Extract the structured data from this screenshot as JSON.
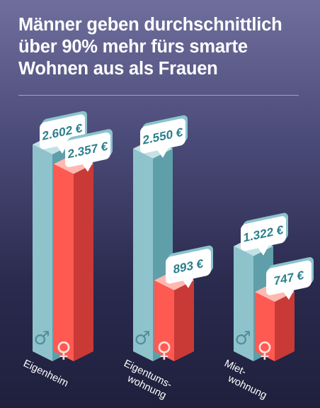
{
  "title_lines": [
    "Männer geben durchschnittlich",
    "über 90% mehr fürs smarte",
    "Wohnen aus als Frauen"
  ],
  "chart_data": {
    "type": "bar",
    "categories": [
      "Eigenheim",
      "Eigentums-\nwohnung",
      "Miet-\nwohnung"
    ],
    "series": [
      {
        "values": [
          2602,
          2550,
          1322
        ],
        "labels": [
          "2.602 €",
          "2.550 €",
          "1.322 €"
        ],
        "symbol": "♂"
      },
      {
        "values": [
          2357,
          893,
          747
        ],
        "labels": [
          "2.357 €",
          "893 €",
          "747 €"
        ],
        "symbol": "♀"
      }
    ],
    "ylim": [
      0,
      3200
    ],
    "colors": {
      "male_front": "#8fc3cc",
      "male_side": "#5f9faa",
      "male_top": "#c3e2e6",
      "female_front": "#ff5a52",
      "female_side": "#c93a36",
      "female_top": "#ffb8b0",
      "bubble_text": "#2b7f8c"
    }
  }
}
